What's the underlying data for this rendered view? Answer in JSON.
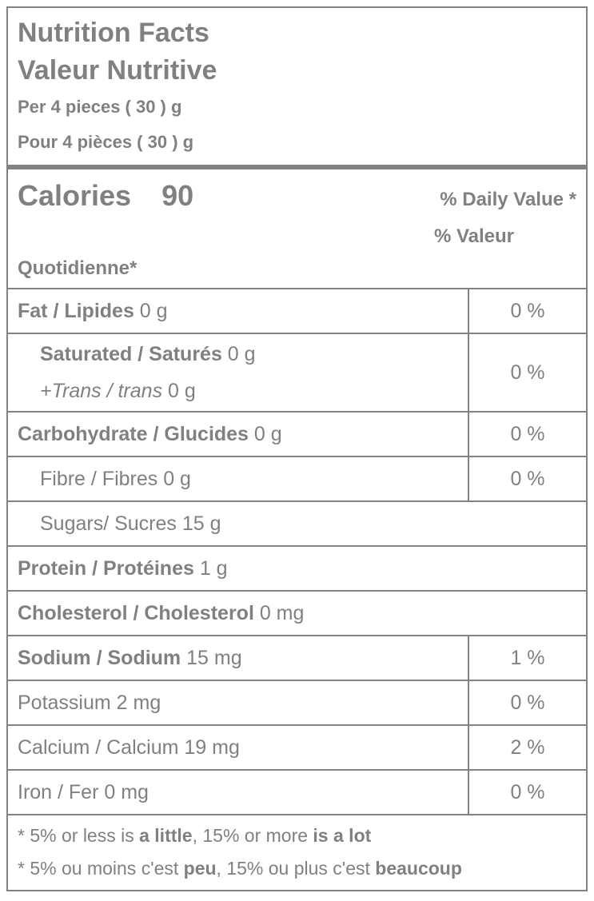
{
  "header": {
    "title_en": "Nutrition Facts",
    "title_fr": "Valeur Nutritive",
    "serving_en": "Per 4 pieces ( 30 ) g",
    "serving_fr": "Pour 4 pièces ( 30 ) g"
  },
  "calories": {
    "label": "Calories",
    "value": "90",
    "dv_heading_en": "% Daily Value *",
    "dv_heading_fr_line1": "% Valeur",
    "dv_heading_fr_line2": "Quotidienne*"
  },
  "rows": [
    {
      "name": "fat",
      "level": 0,
      "dv": "0 %",
      "lines": [
        [
          {
            "t": "Fat / Lipides",
            "b": 1
          },
          {
            "t": " 0 g"
          }
        ]
      ]
    },
    {
      "name": "saturated-trans",
      "level": 1,
      "dv": "0 %",
      "lines": [
        [
          {
            "t": "Saturated / Saturés",
            "b": 1
          },
          {
            "t": " 0 g"
          }
        ],
        [
          {
            "t": "+Trans / trans",
            "i": 1
          },
          {
            "t": " 0 g"
          }
        ]
      ]
    },
    {
      "name": "carbohydrate",
      "level": 0,
      "dv": "0 %",
      "lines": [
        [
          {
            "t": "Carbohydrate / Glucides",
            "b": 1
          },
          {
            "t": " 0 g"
          }
        ]
      ]
    },
    {
      "name": "fibre",
      "level": 1,
      "dv": "0 %",
      "lines": [
        [
          {
            "t": "Fibre / Fibres 0 g"
          }
        ]
      ]
    },
    {
      "name": "sugars",
      "level": 1,
      "dv": null,
      "lines": [
        [
          {
            "t": "Sugars/ Sucres 15 g"
          }
        ]
      ]
    },
    {
      "name": "protein",
      "level": 0,
      "dv": null,
      "lines": [
        [
          {
            "t": "Protein / Protéines",
            "b": 1
          },
          {
            "t": " 1 g"
          }
        ]
      ]
    },
    {
      "name": "cholesterol",
      "level": 0,
      "dv": null,
      "lines": [
        [
          {
            "t": "Cholesterol / Cholesterol",
            "b": 1
          },
          {
            "t": " 0 mg"
          }
        ]
      ]
    },
    {
      "name": "sodium",
      "level": 0,
      "dv": "1 %",
      "lines": [
        [
          {
            "t": "Sodium / Sodium",
            "b": 1
          },
          {
            "t": " 15 mg"
          }
        ]
      ]
    },
    {
      "name": "potassium",
      "level": 0,
      "dv": "0 %",
      "lines": [
        [
          {
            "t": "Potassium 2 mg"
          }
        ]
      ]
    },
    {
      "name": "calcium",
      "level": 0,
      "dv": "2 %",
      "lines": [
        [
          {
            "t": "Calcium / Calcium 19 mg"
          }
        ]
      ]
    },
    {
      "name": "iron",
      "level": 0,
      "dv": "0 %",
      "lines": [
        [
          {
            "t": "Iron / Fer 0 mg"
          }
        ]
      ]
    }
  ],
  "footnotes": [
    {
      "name": "footnote-en",
      "runs": [
        {
          "t": "* 5% or less is "
        },
        {
          "t": "a little",
          "b": 1
        },
        {
          "t": ", 15% or more "
        },
        {
          "t": "is a lot",
          "b": 1
        }
      ]
    },
    {
      "name": "footnote-fr",
      "runs": [
        {
          "t": "* 5% ou moins c'est "
        },
        {
          "t": "peu",
          "b": 1
        },
        {
          "t": ", 15% ou plus c'est "
        },
        {
          "t": "beaucoup",
          "b": 1
        }
      ]
    }
  ],
  "colors": {
    "text": "#808080",
    "border": "#828282"
  }
}
